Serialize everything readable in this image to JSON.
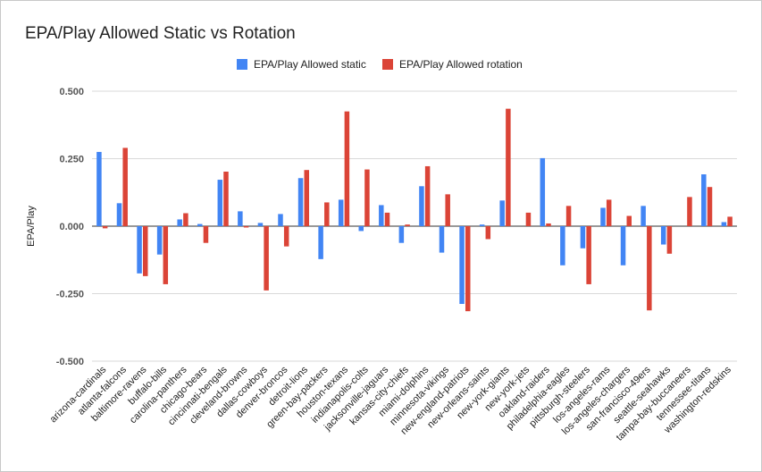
{
  "chart_data": {
    "type": "bar",
    "title": "EPA/Play Allowed Static vs Rotation",
    "xlabel": "",
    "ylabel": "EPA/Play",
    "ylim": [
      -0.5,
      0.5
    ],
    "yticks": [
      "0.500",
      "0.250",
      "0.000",
      "-0.250",
      "-0.500"
    ],
    "ytick_values": [
      0.5,
      0.25,
      0,
      -0.25,
      -0.5
    ],
    "grid": true,
    "legend_position": "top",
    "categories": [
      "arizona-cardinals",
      "atlanta-falcons",
      "baltimore-ravens",
      "buffalo-bills",
      "carolina-panthers",
      "chicago-bears",
      "cincinnati-bengals",
      "cleveland-browns",
      "dallas-cowboys",
      "denver-broncos",
      "detroit-lions",
      "green-bay-packers",
      "houston-texans",
      "indianapolis-colts",
      "jacksonville-jaguars",
      "kansas-city-chiefs",
      "miami-dolphins",
      "minnesota-vikings",
      "new-england-patriots",
      "new-orleans-saints",
      "new-york-giants",
      "new-york-jets",
      "oakland-raiders",
      "philadelphia-eagles",
      "pittsburgh-steelers",
      "los-angeles-rams",
      "los-angeles-chargers",
      "san-francisco-49ers",
      "seattle-seahawks",
      "tampa-bay-buccaneers",
      "tennessee-titans",
      "washington-redskins"
    ],
    "series": [
      {
        "name": "EPA/Play Allowed static",
        "color": "#4285f4",
        "values": [
          0.275,
          0.085,
          -0.175,
          -0.105,
          0.025,
          0.008,
          0.172,
          0.055,
          0.012,
          0.045,
          0.178,
          -0.122,
          0.098,
          -0.018,
          0.078,
          -0.062,
          0.148,
          -0.098,
          -0.288,
          0.006,
          0.095,
          0.0,
          0.252,
          -0.145,
          -0.082,
          0.068,
          -0.145,
          0.075,
          -0.068,
          0.0,
          0.192,
          0.015
        ]
      },
      {
        "name": "EPA/Play Allowed rotation",
        "color": "#db4437",
        "values": [
          -0.008,
          0.29,
          -0.185,
          -0.215,
          0.048,
          -0.062,
          0.202,
          -0.005,
          -0.238,
          -0.075,
          0.208,
          0.088,
          0.425,
          0.21,
          0.05,
          0.006,
          0.222,
          0.118,
          -0.315,
          -0.048,
          0.435,
          0.05,
          0.01,
          0.075,
          -0.215,
          0.098,
          0.038,
          -0.312,
          -0.102,
          0.108,
          0.145,
          0.035
        ]
      }
    ]
  }
}
